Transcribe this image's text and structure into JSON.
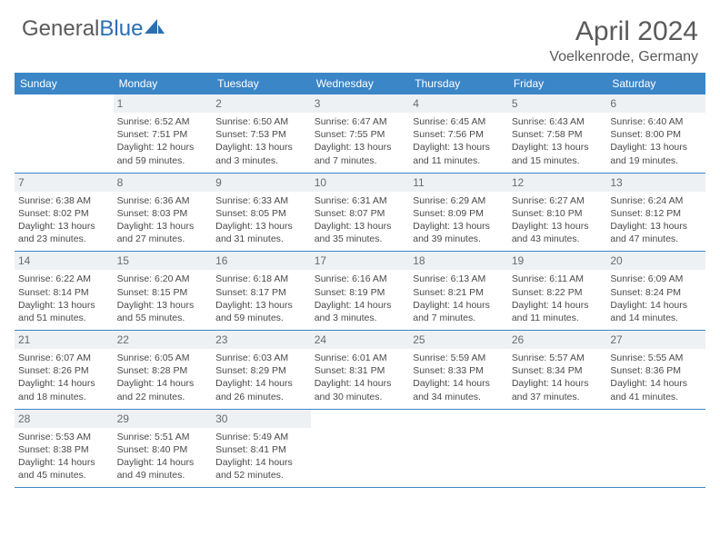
{
  "logo": {
    "text1": "General",
    "text2": "Blue"
  },
  "title": "April 2024",
  "location": "Voelkenrode, Germany",
  "colors": {
    "header_bg": "#3b86c7",
    "header_text": "#ffffff",
    "daynum_bg": "#eef1f4",
    "daynum_text": "#6a6a6a",
    "body_text": "#4a4a4a",
    "title_text": "#5a5a5a",
    "rule": "#3b86c7",
    "logo_gray": "#5a5a5a",
    "logo_blue": "#2c6fb0"
  },
  "day_headers": [
    "Sunday",
    "Monday",
    "Tuesday",
    "Wednesday",
    "Thursday",
    "Friday",
    "Saturday"
  ],
  "weeks": [
    [
      {
        "n": "",
        "s": "",
        "t": "",
        "d1": "",
        "d2": ""
      },
      {
        "n": "1",
        "s": "Sunrise: 6:52 AM",
        "t": "Sunset: 7:51 PM",
        "d1": "Daylight: 12 hours",
        "d2": "and 59 minutes."
      },
      {
        "n": "2",
        "s": "Sunrise: 6:50 AM",
        "t": "Sunset: 7:53 PM",
        "d1": "Daylight: 13 hours",
        "d2": "and 3 minutes."
      },
      {
        "n": "3",
        "s": "Sunrise: 6:47 AM",
        "t": "Sunset: 7:55 PM",
        "d1": "Daylight: 13 hours",
        "d2": "and 7 minutes."
      },
      {
        "n": "4",
        "s": "Sunrise: 6:45 AM",
        "t": "Sunset: 7:56 PM",
        "d1": "Daylight: 13 hours",
        "d2": "and 11 minutes."
      },
      {
        "n": "5",
        "s": "Sunrise: 6:43 AM",
        "t": "Sunset: 7:58 PM",
        "d1": "Daylight: 13 hours",
        "d2": "and 15 minutes."
      },
      {
        "n": "6",
        "s": "Sunrise: 6:40 AM",
        "t": "Sunset: 8:00 PM",
        "d1": "Daylight: 13 hours",
        "d2": "and 19 minutes."
      }
    ],
    [
      {
        "n": "7",
        "s": "Sunrise: 6:38 AM",
        "t": "Sunset: 8:02 PM",
        "d1": "Daylight: 13 hours",
        "d2": "and 23 minutes."
      },
      {
        "n": "8",
        "s": "Sunrise: 6:36 AM",
        "t": "Sunset: 8:03 PM",
        "d1": "Daylight: 13 hours",
        "d2": "and 27 minutes."
      },
      {
        "n": "9",
        "s": "Sunrise: 6:33 AM",
        "t": "Sunset: 8:05 PM",
        "d1": "Daylight: 13 hours",
        "d2": "and 31 minutes."
      },
      {
        "n": "10",
        "s": "Sunrise: 6:31 AM",
        "t": "Sunset: 8:07 PM",
        "d1": "Daylight: 13 hours",
        "d2": "and 35 minutes."
      },
      {
        "n": "11",
        "s": "Sunrise: 6:29 AM",
        "t": "Sunset: 8:09 PM",
        "d1": "Daylight: 13 hours",
        "d2": "and 39 minutes."
      },
      {
        "n": "12",
        "s": "Sunrise: 6:27 AM",
        "t": "Sunset: 8:10 PM",
        "d1": "Daylight: 13 hours",
        "d2": "and 43 minutes."
      },
      {
        "n": "13",
        "s": "Sunrise: 6:24 AM",
        "t": "Sunset: 8:12 PM",
        "d1": "Daylight: 13 hours",
        "d2": "and 47 minutes."
      }
    ],
    [
      {
        "n": "14",
        "s": "Sunrise: 6:22 AM",
        "t": "Sunset: 8:14 PM",
        "d1": "Daylight: 13 hours",
        "d2": "and 51 minutes."
      },
      {
        "n": "15",
        "s": "Sunrise: 6:20 AM",
        "t": "Sunset: 8:15 PM",
        "d1": "Daylight: 13 hours",
        "d2": "and 55 minutes."
      },
      {
        "n": "16",
        "s": "Sunrise: 6:18 AM",
        "t": "Sunset: 8:17 PM",
        "d1": "Daylight: 13 hours",
        "d2": "and 59 minutes."
      },
      {
        "n": "17",
        "s": "Sunrise: 6:16 AM",
        "t": "Sunset: 8:19 PM",
        "d1": "Daylight: 14 hours",
        "d2": "and 3 minutes."
      },
      {
        "n": "18",
        "s": "Sunrise: 6:13 AM",
        "t": "Sunset: 8:21 PM",
        "d1": "Daylight: 14 hours",
        "d2": "and 7 minutes."
      },
      {
        "n": "19",
        "s": "Sunrise: 6:11 AM",
        "t": "Sunset: 8:22 PM",
        "d1": "Daylight: 14 hours",
        "d2": "and 11 minutes."
      },
      {
        "n": "20",
        "s": "Sunrise: 6:09 AM",
        "t": "Sunset: 8:24 PM",
        "d1": "Daylight: 14 hours",
        "d2": "and 14 minutes."
      }
    ],
    [
      {
        "n": "21",
        "s": "Sunrise: 6:07 AM",
        "t": "Sunset: 8:26 PM",
        "d1": "Daylight: 14 hours",
        "d2": "and 18 minutes."
      },
      {
        "n": "22",
        "s": "Sunrise: 6:05 AM",
        "t": "Sunset: 8:28 PM",
        "d1": "Daylight: 14 hours",
        "d2": "and 22 minutes."
      },
      {
        "n": "23",
        "s": "Sunrise: 6:03 AM",
        "t": "Sunset: 8:29 PM",
        "d1": "Daylight: 14 hours",
        "d2": "and 26 minutes."
      },
      {
        "n": "24",
        "s": "Sunrise: 6:01 AM",
        "t": "Sunset: 8:31 PM",
        "d1": "Daylight: 14 hours",
        "d2": "and 30 minutes."
      },
      {
        "n": "25",
        "s": "Sunrise: 5:59 AM",
        "t": "Sunset: 8:33 PM",
        "d1": "Daylight: 14 hours",
        "d2": "and 34 minutes."
      },
      {
        "n": "26",
        "s": "Sunrise: 5:57 AM",
        "t": "Sunset: 8:34 PM",
        "d1": "Daylight: 14 hours",
        "d2": "and 37 minutes."
      },
      {
        "n": "27",
        "s": "Sunrise: 5:55 AM",
        "t": "Sunset: 8:36 PM",
        "d1": "Daylight: 14 hours",
        "d2": "and 41 minutes."
      }
    ],
    [
      {
        "n": "28",
        "s": "Sunrise: 5:53 AM",
        "t": "Sunset: 8:38 PM",
        "d1": "Daylight: 14 hours",
        "d2": "and 45 minutes."
      },
      {
        "n": "29",
        "s": "Sunrise: 5:51 AM",
        "t": "Sunset: 8:40 PM",
        "d1": "Daylight: 14 hours",
        "d2": "and 49 minutes."
      },
      {
        "n": "30",
        "s": "Sunrise: 5:49 AM",
        "t": "Sunset: 8:41 PM",
        "d1": "Daylight: 14 hours",
        "d2": "and 52 minutes."
      },
      {
        "n": "",
        "s": "",
        "t": "",
        "d1": "",
        "d2": ""
      },
      {
        "n": "",
        "s": "",
        "t": "",
        "d1": "",
        "d2": ""
      },
      {
        "n": "",
        "s": "",
        "t": "",
        "d1": "",
        "d2": ""
      },
      {
        "n": "",
        "s": "",
        "t": "",
        "d1": "",
        "d2": ""
      }
    ]
  ]
}
